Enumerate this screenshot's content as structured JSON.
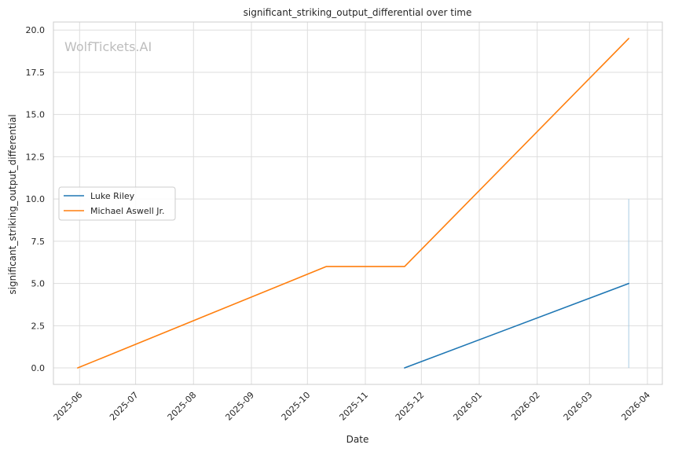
{
  "chart_data": {
    "type": "line",
    "title": "significant_striking_output_differential over time",
    "xlabel": "Date",
    "ylabel": "significant_striking_output_differential",
    "watermark": "WolfTickets.AI",
    "xlim": [
      "2025-05-18",
      "2026-04-09"
    ],
    "ylim": [
      -0.975,
      20.475
    ],
    "x_ticks": [
      "2025-06",
      "2025-07",
      "2025-08",
      "2025-09",
      "2025-10",
      "2025-11",
      "2025-12",
      "2026-01",
      "2026-02",
      "2026-03",
      "2026-04"
    ],
    "y_ticks": [
      "0.0",
      "2.5",
      "5.0",
      "7.5",
      "10.0",
      "12.5",
      "15.0",
      "17.5",
      "20.0"
    ],
    "grid": true,
    "legend_position": "center-left",
    "series": [
      {
        "name": "Luke Riley",
        "color": "#1f77b4",
        "points": [
          {
            "x": "2025-11-22",
            "y": 0
          },
          {
            "x": "2026-03-22",
            "y": 5
          }
        ]
      },
      {
        "name": "Michael Aswell Jr.",
        "color": "#ff7f0e",
        "points": [
          {
            "x": "2025-05-31",
            "y": 0
          },
          {
            "x": "2025-10-11",
            "y": 6
          },
          {
            "x": "2025-11-22",
            "y": 6
          },
          {
            "x": "2026-03-22",
            "y": 19.5
          }
        ]
      }
    ],
    "vertical_marker": {
      "x": "2026-03-22",
      "y_range": [
        0,
        10
      ],
      "color": "#a9cce3"
    }
  }
}
